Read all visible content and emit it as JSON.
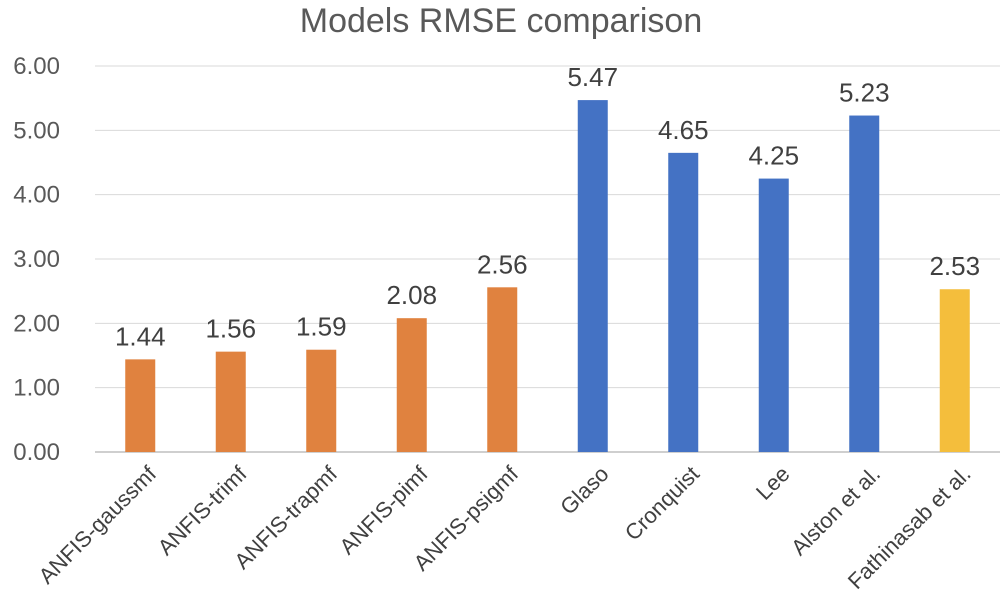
{
  "chart_data": {
    "type": "bar",
    "title": "Models RMSE comparison",
    "xlabel": "",
    "ylabel": "",
    "ylim": [
      0,
      6
    ],
    "yticks": [
      "0.00",
      "1.00",
      "2.00",
      "3.00",
      "4.00",
      "5.00",
      "6.00"
    ],
    "grid": true,
    "categories": [
      "ANFIS-gaussmf",
      "ANFIS-trimf",
      "ANFIS-trapmf",
      "ANFIS-pimf",
      "ANFIS-psigmf",
      "Glaso",
      "Cronquist",
      "Lee",
      "Alston et al.",
      "Fathinasab et al."
    ],
    "values": [
      1.44,
      1.56,
      1.59,
      2.08,
      2.56,
      5.47,
      4.65,
      4.25,
      5.23,
      2.53
    ],
    "data_labels": [
      "1.44",
      "1.56",
      "1.59",
      "2.08",
      "2.56",
      "5.47",
      "4.65",
      "4.25",
      "5.23",
      "2.53"
    ],
    "colors": [
      "#e0823f",
      "#e0823f",
      "#e0823f",
      "#e0823f",
      "#e0823f",
      "#4472c4",
      "#4472c4",
      "#4472c4",
      "#4472c4",
      "#f4be3c"
    ]
  }
}
